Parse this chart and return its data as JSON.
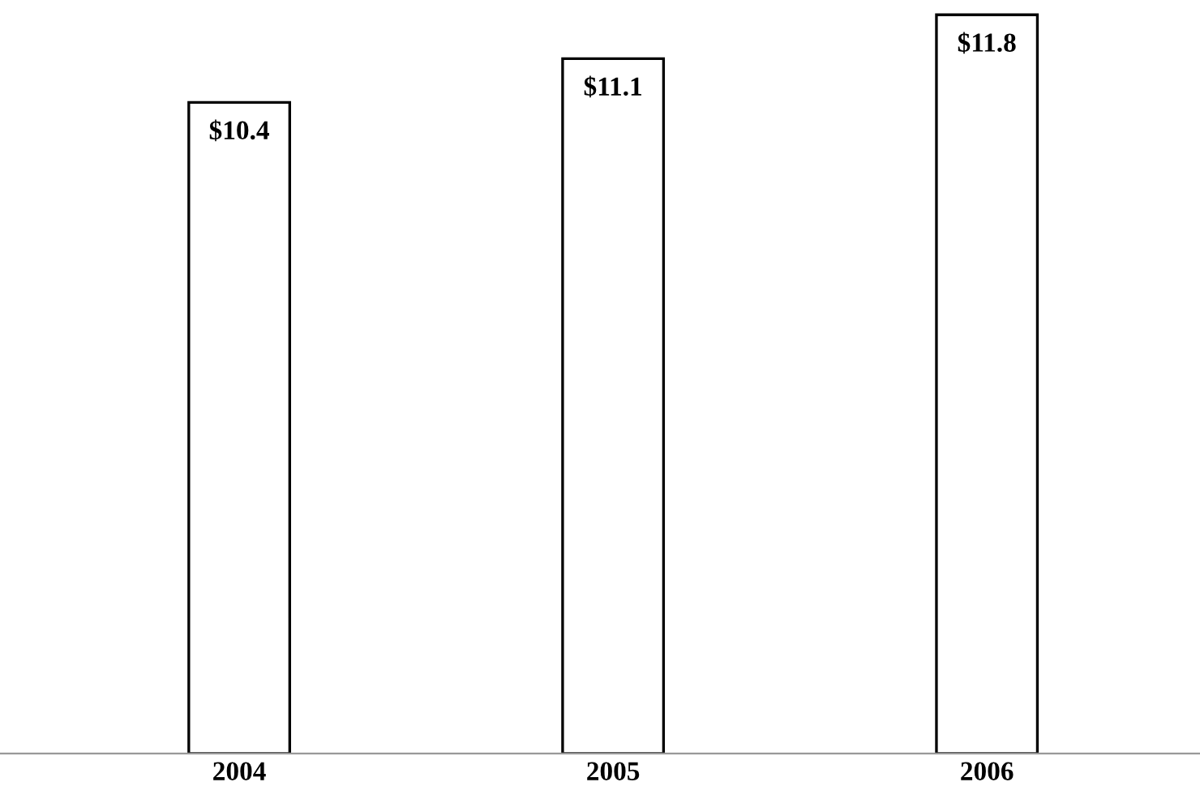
{
  "chart_data": {
    "type": "bar",
    "categories": [
      "2004",
      "2005",
      "2006"
    ],
    "values": [
      10.4,
      11.1,
      11.8
    ],
    "color": "#ffffff",
    "value_labels": [
      "$10.4",
      "$11.1",
      "$11.8"
    ],
    "grid": false,
    "legend": false
  }
}
